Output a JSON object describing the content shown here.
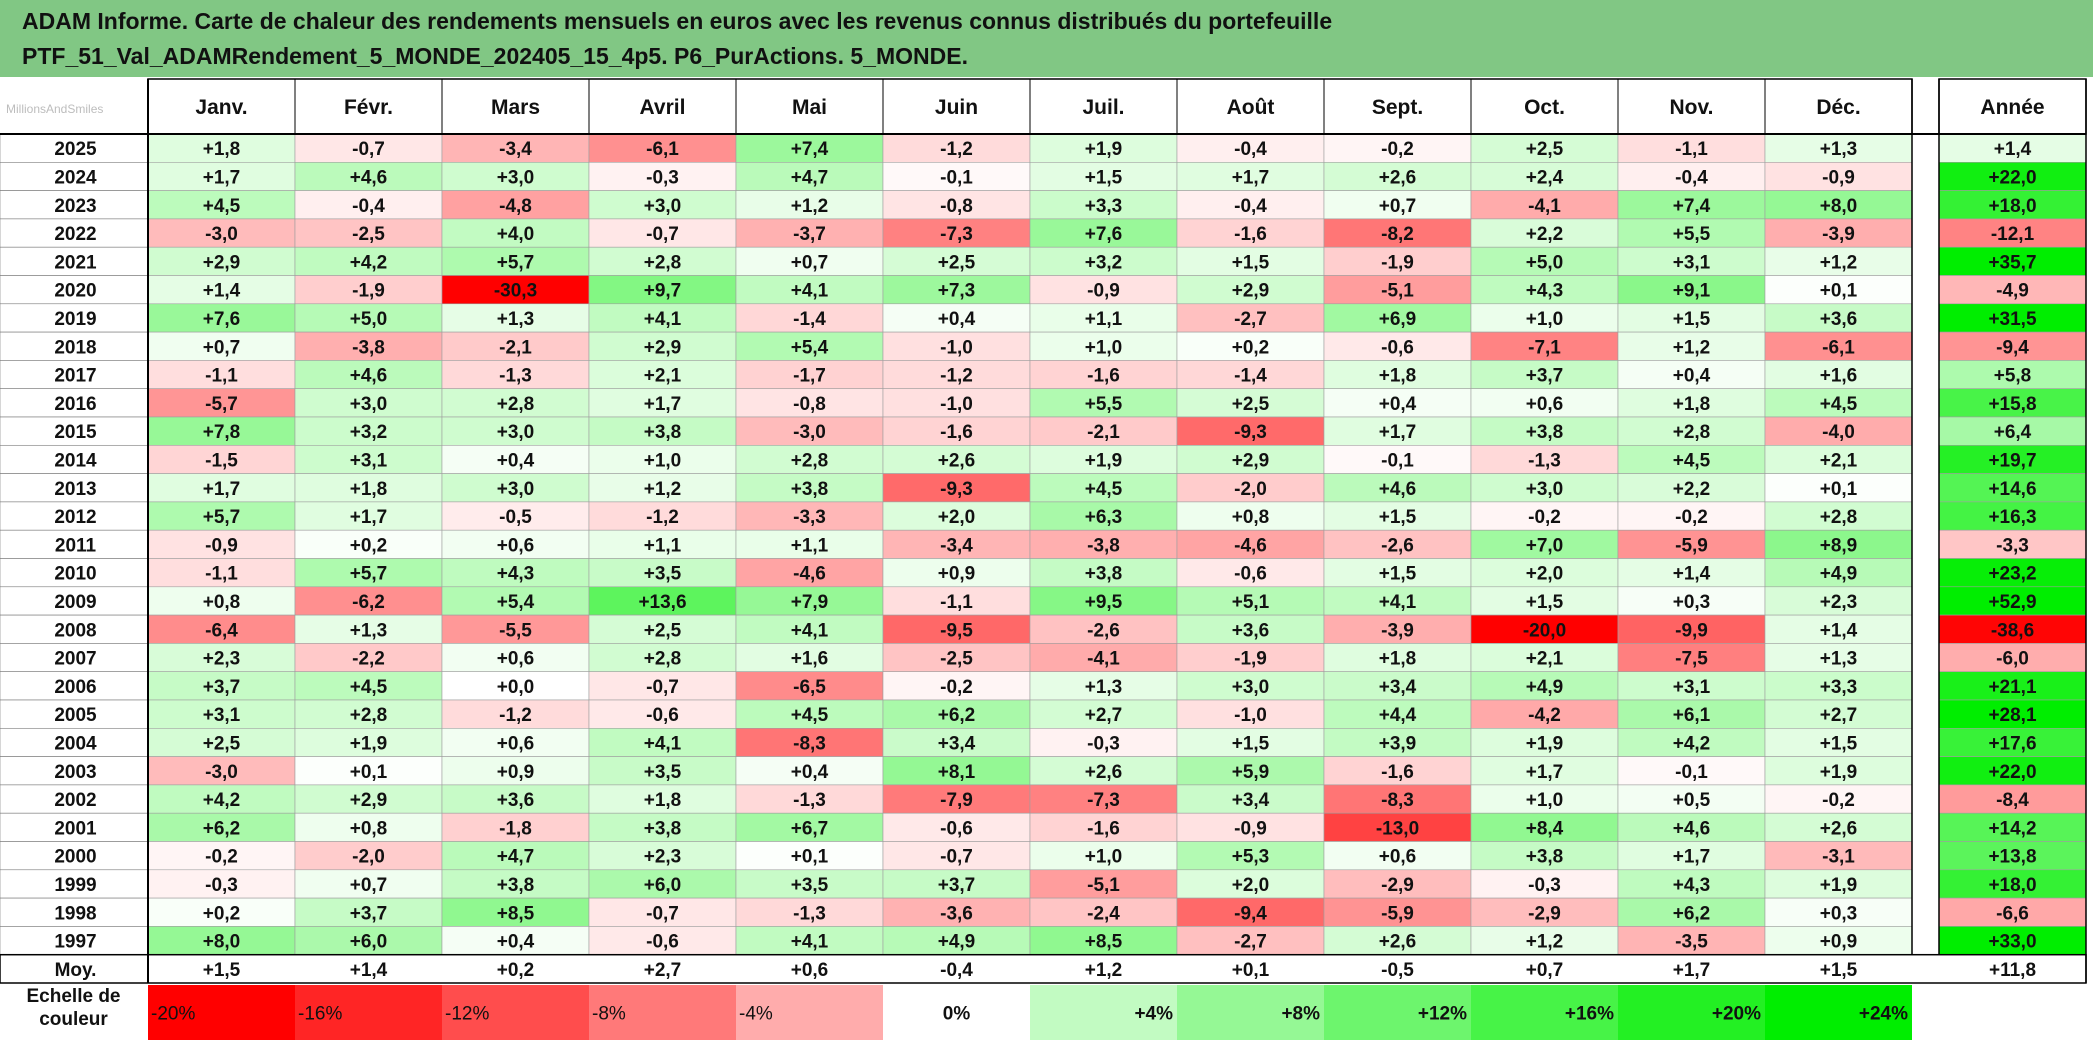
{
  "title": {
    "line1": "ADAM Informe. Carte de chaleur des rendements mensuels en euros avec les revenus connus distribués du portefeuille",
    "line2": "PTF_51_Val_ADAMRendement_5_MONDE_202405_15_4p5. P6_PurActions. 5_MONDE."
  },
  "colors": {
    "title_bg": "#81c784",
    "negative_max": "#ff0000",
    "positive_max": "#00ee00",
    "neutral": "#ffffff",
    "grid": "#000000"
  },
  "chart_data": {
    "type": "heatmap",
    "columns": [
      "Janv.",
      "Févr.",
      "Mars",
      "Avril",
      "Mai",
      "Juin",
      "Juil.",
      "Août",
      "Sept.",
      "Oct.",
      "Nov.",
      "Déc."
    ],
    "year_column_label": "Année",
    "rows": [
      {
        "year": "2025",
        "values": [
          "+1,8",
          "-0,7",
          "-3,4",
          "-6,1",
          "+7,4",
          "-1,2",
          "+1,9",
          "-0,4",
          "-0,2",
          "+2,5",
          "-1,1",
          "+1,3"
        ],
        "annual": "+1,4"
      },
      {
        "year": "2024",
        "values": [
          "+1,7",
          "+4,6",
          "+3,0",
          "-0,3",
          "+4,7",
          "-0,1",
          "+1,5",
          "+1,7",
          "+2,6",
          "+2,4",
          "-0,4",
          "-0,9"
        ],
        "annual": "+22,0"
      },
      {
        "year": "2023",
        "values": [
          "+4,5",
          "-0,4",
          "-4,8",
          "+3,0",
          "+1,2",
          "-0,8",
          "+3,3",
          "-0,4",
          "+0,7",
          "-4,1",
          "+7,4",
          "+8,0"
        ],
        "annual": "+18,0"
      },
      {
        "year": "2022",
        "values": [
          "-3,0",
          "-2,5",
          "+4,0",
          "-0,7",
          "-3,7",
          "-7,3",
          "+7,6",
          "-1,6",
          "-8,2",
          "+2,2",
          "+5,5",
          "-3,9"
        ],
        "annual": "-12,1"
      },
      {
        "year": "2021",
        "values": [
          "+2,9",
          "+4,2",
          "+5,7",
          "+2,8",
          "+0,7",
          "+2,5",
          "+3,2",
          "+1,5",
          "-1,9",
          "+5,0",
          "+3,1",
          "+1,2"
        ],
        "annual": "+35,7"
      },
      {
        "year": "2020",
        "values": [
          "+1,4",
          "-1,9",
          "-30,3",
          "+9,7",
          "+4,1",
          "+7,3",
          "-0,9",
          "+2,9",
          "-5,1",
          "+4,3",
          "+9,1",
          "+0,1"
        ],
        "annual": "-4,9"
      },
      {
        "year": "2019",
        "values": [
          "+7,6",
          "+5,0",
          "+1,3",
          "+4,1",
          "-1,4",
          "+0,4",
          "+1,1",
          "-2,7",
          "+6,9",
          "+1,0",
          "+1,5",
          "+3,6"
        ],
        "annual": "+31,5"
      },
      {
        "year": "2018",
        "values": [
          "+0,7",
          "-3,8",
          "-2,1",
          "+2,9",
          "+5,4",
          "-1,0",
          "+1,0",
          "+0,2",
          "-0,6",
          "-7,1",
          "+1,2",
          "-6,1"
        ],
        "annual": "-9,4"
      },
      {
        "year": "2017",
        "values": [
          "-1,1",
          "+4,6",
          "-1,3",
          "+2,1",
          "-1,7",
          "-1,2",
          "-1,6",
          "-1,4",
          "+1,8",
          "+3,7",
          "+0,4",
          "+1,6"
        ],
        "annual": "+5,8"
      },
      {
        "year": "2016",
        "values": [
          "-5,7",
          "+3,0",
          "+2,8",
          "+1,7",
          "-0,8",
          "-1,0",
          "+5,5",
          "+2,5",
          "+0,4",
          "+0,6",
          "+1,8",
          "+4,5"
        ],
        "annual": "+15,8"
      },
      {
        "year": "2015",
        "values": [
          "+7,8",
          "+3,2",
          "+3,0",
          "+3,8",
          "-3,0",
          "-1,6",
          "-2,1",
          "-9,3",
          "+1,7",
          "+3,8",
          "+2,8",
          "-4,0"
        ],
        "annual": "+6,4"
      },
      {
        "year": "2014",
        "values": [
          "-1,5",
          "+3,1",
          "+0,4",
          "+1,0",
          "+2,8",
          "+2,6",
          "+1,9",
          "+2,9",
          "-0,1",
          "-1,3",
          "+4,5",
          "+2,1"
        ],
        "annual": "+19,7"
      },
      {
        "year": "2013",
        "values": [
          "+1,7",
          "+1,8",
          "+3,0",
          "+1,2",
          "+3,8",
          "-9,3",
          "+4,5",
          "-2,0",
          "+4,6",
          "+3,0",
          "+2,2",
          "+0,1"
        ],
        "annual": "+14,6"
      },
      {
        "year": "2012",
        "values": [
          "+5,7",
          "+1,7",
          "-0,5",
          "-1,2",
          "-3,3",
          "+2,0",
          "+6,3",
          "+0,8",
          "+1,5",
          "-0,2",
          "-0,2",
          "+2,8"
        ],
        "annual": "+16,3"
      },
      {
        "year": "2011",
        "values": [
          "-0,9",
          "+0,2",
          "+0,6",
          "+1,1",
          "+1,1",
          "-3,4",
          "-3,8",
          "-4,6",
          "-2,6",
          "+7,0",
          "-5,9",
          "+8,9"
        ],
        "annual": "-3,3"
      },
      {
        "year": "2010",
        "values": [
          "-1,1",
          "+5,7",
          "+4,3",
          "+3,5",
          "-4,6",
          "+0,9",
          "+3,8",
          "-0,6",
          "+1,5",
          "+2,0",
          "+1,4",
          "+4,9"
        ],
        "annual": "+23,2"
      },
      {
        "year": "2009",
        "values": [
          "+0,8",
          "-6,2",
          "+5,4",
          "+13,6",
          "+7,9",
          "-1,1",
          "+9,5",
          "+5,1",
          "+4,1",
          "+1,5",
          "+0,3",
          "+2,3"
        ],
        "annual": "+52,9"
      },
      {
        "year": "2008",
        "values": [
          "-6,4",
          "+1,3",
          "-5,5",
          "+2,5",
          "+4,1",
          "-9,5",
          "-2,6",
          "+3,6",
          "-3,9",
          "-20,0",
          "-9,9",
          "+1,4"
        ],
        "annual": "-38,6"
      },
      {
        "year": "2007",
        "values": [
          "+2,3",
          "-2,2",
          "+0,6",
          "+2,8",
          "+1,6",
          "-2,5",
          "-4,1",
          "-1,9",
          "+1,8",
          "+2,1",
          "-7,5",
          "+1,3"
        ],
        "annual": "-6,0"
      },
      {
        "year": "2006",
        "values": [
          "+3,7",
          "+4,5",
          "+0,0",
          "-0,7",
          "-6,5",
          "-0,2",
          "+1,3",
          "+3,0",
          "+3,4",
          "+4,9",
          "+3,1",
          "+3,3"
        ],
        "annual": "+21,1"
      },
      {
        "year": "2005",
        "values": [
          "+3,1",
          "+2,8",
          "-1,2",
          "-0,6",
          "+4,5",
          "+6,2",
          "+2,7",
          "-1,0",
          "+4,4",
          "-4,2",
          "+6,1",
          "+2,7"
        ],
        "annual": "+28,1"
      },
      {
        "year": "2004",
        "values": [
          "+2,5",
          "+1,9",
          "+0,6",
          "+4,1",
          "-8,3",
          "+3,4",
          "-0,3",
          "+1,5",
          "+3,9",
          "+1,9",
          "+4,2",
          "+1,5"
        ],
        "annual": "+17,6"
      },
      {
        "year": "2003",
        "values": [
          "-3,0",
          "+0,1",
          "+0,9",
          "+3,5",
          "+0,4",
          "+8,1",
          "+2,6",
          "+5,9",
          "-1,6",
          "+1,7",
          "-0,1",
          "+1,9"
        ],
        "annual": "+22,0"
      },
      {
        "year": "2002",
        "values": [
          "+4,2",
          "+2,9",
          "+3,6",
          "+1,8",
          "-1,3",
          "-7,9",
          "-7,3",
          "+3,4",
          "-8,3",
          "+1,0",
          "+0,5",
          "-0,2"
        ],
        "annual": "-8,4"
      },
      {
        "year": "2001",
        "values": [
          "+6,2",
          "+0,8",
          "-1,8",
          "+3,8",
          "+6,7",
          "-0,6",
          "-1,6",
          "-0,9",
          "-13,0",
          "+8,4",
          "+4,6",
          "+2,6"
        ],
        "annual": "+14,2"
      },
      {
        "year": "2000",
        "values": [
          "-0,2",
          "-2,0",
          "+4,7",
          "+2,3",
          "+0,1",
          "-0,7",
          "+1,0",
          "+5,3",
          "+0,6",
          "+3,8",
          "+1,7",
          "-3,1"
        ],
        "annual": "+13,8"
      },
      {
        "year": "1999",
        "values": [
          "-0,3",
          "+0,7",
          "+3,8",
          "+6,0",
          "+3,5",
          "+3,7",
          "-5,1",
          "+2,0",
          "-2,9",
          "-0,3",
          "+4,3",
          "+1,9"
        ],
        "annual": "+18,0"
      },
      {
        "year": "1998",
        "values": [
          "+0,2",
          "+3,7",
          "+8,5",
          "-0,7",
          "-1,3",
          "-3,6",
          "-2,4",
          "-9,4",
          "-5,9",
          "-2,9",
          "+6,2",
          "+0,3"
        ],
        "annual": "-6,6"
      },
      {
        "year": "1997",
        "values": [
          "+8,0",
          "+6,0",
          "+0,4",
          "-0,6",
          "+4,1",
          "+4,9",
          "+8,5",
          "-2,7",
          "+2,6",
          "+1,2",
          "-3,5",
          "+0,9"
        ],
        "annual": "+33,0"
      }
    ],
    "average": {
      "label": "Moy.",
      "values": [
        "+1,5",
        "+1,4",
        "+0,2",
        "+2,7",
        "+0,6",
        "-0,4",
        "+1,2",
        "+0,1",
        "-0,5",
        "+0,7",
        "+1,7",
        "+1,5"
      ],
      "annual": "+11,8"
    },
    "scale": {
      "label_line1": "Echelle de",
      "label_line2": "couleur",
      "steps": [
        "-20%",
        "-16%",
        "-12%",
        "-8%",
        "-4%",
        "0%",
        "+4%",
        "+8%",
        "+12%",
        "+16%",
        "+20%",
        "+24%"
      ]
    }
  }
}
